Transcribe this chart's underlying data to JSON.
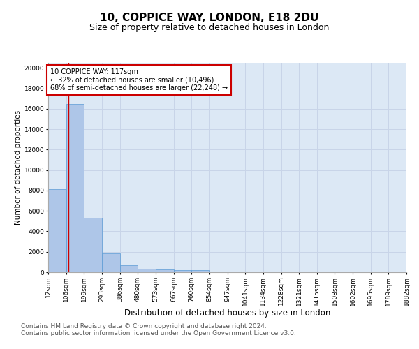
{
  "title1": "10, COPPICE WAY, LONDON, E18 2DU",
  "title2": "Size of property relative to detached houses in London",
  "xlabel": "Distribution of detached houses by size in London",
  "ylabel": "Number of detached properties",
  "bar_values": [
    8100,
    16500,
    5300,
    1850,
    700,
    350,
    270,
    200,
    200,
    100,
    50,
    20,
    10,
    5,
    3,
    2,
    1,
    1,
    1,
    0
  ],
  "bin_edges": [
    12,
    106,
    199,
    293,
    386,
    480,
    573,
    667,
    760,
    854,
    947,
    1041,
    1134,
    1228,
    1321,
    1415,
    1508,
    1602,
    1695,
    1789,
    1882
  ],
  "tick_labels": [
    "12sqm",
    "106sqm",
    "199sqm",
    "293sqm",
    "386sqm",
    "480sqm",
    "573sqm",
    "667sqm",
    "760sqm",
    "854sqm",
    "947sqm",
    "1041sqm",
    "1134sqm",
    "1228sqm",
    "1321sqm",
    "1415sqm",
    "1508sqm",
    "1602sqm",
    "1695sqm",
    "1789sqm",
    "1882sqm"
  ],
  "bar_color": "#aec6e8",
  "bar_edge_color": "#5b9bd5",
  "grid_color": "#c8d4e8",
  "background_color": "#dce8f5",
  "vline_x": 117,
  "vline_color": "#cc0000",
  "annotation_text": "10 COPPICE WAY: 117sqm\n← 32% of detached houses are smaller (10,496)\n68% of semi-detached houses are larger (22,248) →",
  "annotation_box_color": "#ffffff",
  "annotation_border_color": "#cc0000",
  "ylim": [
    0,
    20500
  ],
  "yticks": [
    0,
    2000,
    4000,
    6000,
    8000,
    10000,
    12000,
    14000,
    16000,
    18000,
    20000
  ],
  "footer_text": "Contains HM Land Registry data © Crown copyright and database right 2024.\nContains public sector information licensed under the Open Government Licence v3.0.",
  "title1_fontsize": 11,
  "title2_fontsize": 9,
  "xlabel_fontsize": 8.5,
  "ylabel_fontsize": 7.5,
  "tick_fontsize": 6.5,
  "annotation_fontsize": 7,
  "footer_fontsize": 6.5
}
